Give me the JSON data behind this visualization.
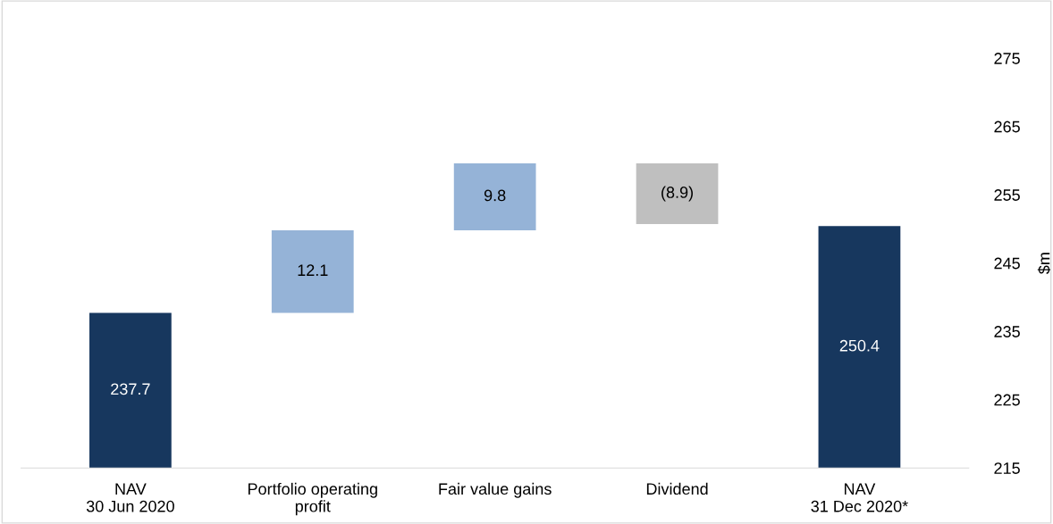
{
  "chart_data": {
    "type": "bar",
    "categories": [
      "NAV\n30 Jun 2020",
      "Portfolio operating\nprofit",
      "Fair value gains",
      "Dividend",
      "NAV\n31 Dec 2020*"
    ],
    "values": [
      22.7,
      12.1,
      9.8,
      -8.9,
      35.4
    ],
    "base": [
      215,
      237.7,
      249.8,
      259.6,
      215
    ],
    "colors": [
      "#17375e",
      "#95b3d7",
      "#95b3d7",
      "#bfbfbf",
      "#17375e"
    ],
    "value_labels": [
      "237.7",
      "12.1",
      "9.8",
      "(8.9)",
      "250.4"
    ],
    "ylabel": "$m",
    "ylim": [
      215,
      275
    ],
    "yticks": [
      215,
      225,
      235,
      245,
      255,
      265,
      275
    ],
    "grid": false,
    "legend": false
  }
}
